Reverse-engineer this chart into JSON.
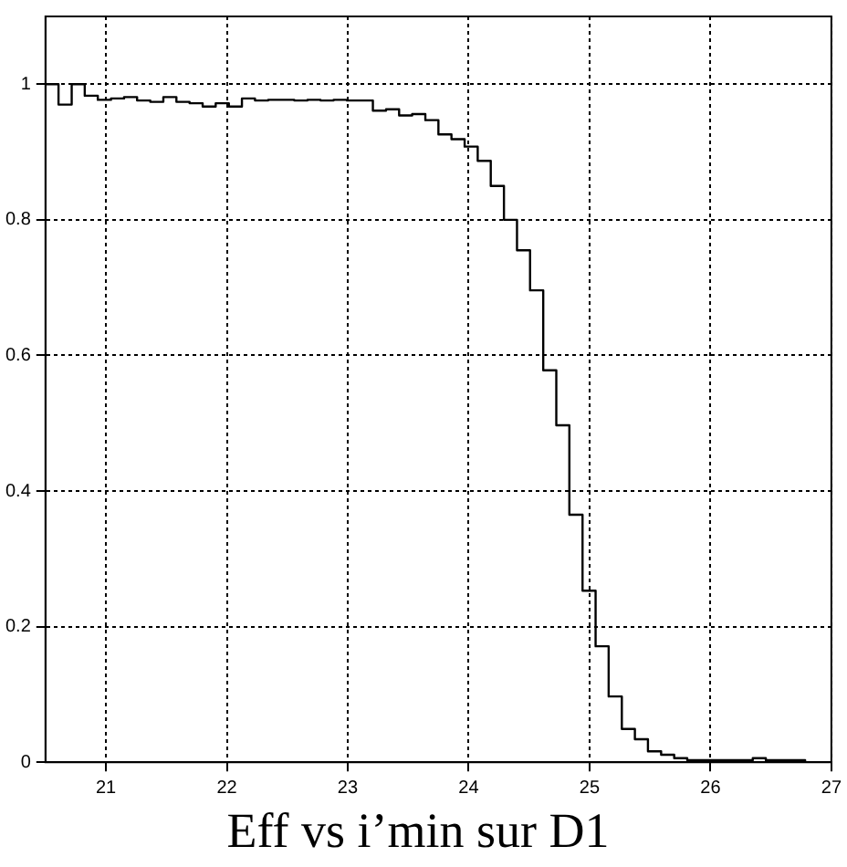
{
  "chart_data": {
    "type": "histogram",
    "title": "Eff vs i’min sur D1",
    "bins": [
      20.5,
      20.608,
      20.717,
      20.825,
      20.933,
      21.042,
      21.15,
      21.258,
      21.367,
      21.475,
      21.583,
      21.692,
      21.8,
      21.908,
      22.017,
      22.125,
      22.233,
      22.342,
      22.45,
      22.558,
      22.667,
      22.775,
      22.883,
      22.992,
      23.1,
      23.208,
      23.317,
      23.425,
      23.533,
      23.642,
      23.75,
      23.858,
      23.967,
      24.075,
      24.183,
      24.292,
      24.4,
      24.508,
      24.617,
      24.725,
      24.833,
      24.942,
      25.05,
      25.158,
      25.267,
      25.375,
      25.483,
      25.592,
      25.7,
      25.808,
      25.917,
      26.025,
      26.133,
      26.242,
      26.35,
      26.458,
      26.567,
      26.675,
      26.783,
      26.892,
      27
    ],
    "values": [
      1,
      0.97,
      1,
      0.983,
      0.977,
      0.979,
      0.981,
      0.976,
      0.974,
      0.981,
      0.974,
      0.972,
      0.967,
      0.972,
      0.967,
      0.979,
      0.976,
      0.977,
      0.977,
      0.976,
      0.977,
      0.976,
      0.977,
      0.976,
      0.976,
      0.961,
      0.963,
      0.954,
      0.956,
      0.947,
      0.926,
      0.919,
      0.908,
      0.887,
      0.85,
      0.8,
      0.755,
      0.696,
      0.578,
      0.497,
      0.365,
      0.253,
      0.171,
      0.097,
      0.049,
      0.034,
      0.016,
      0.011,
      0.006,
      0.003,
      0.003,
      0.003,
      0.003,
      0.003,
      0.006,
      0.003,
      0.003,
      0.003,
      0,
      0
    ],
    "color": "#000000",
    "xlim": [
      20.5,
      27
    ],
    "xticks": [
      21,
      22,
      23,
      24,
      25,
      26,
      27
    ],
    "ylim": [
      0,
      1.1
    ],
    "yticks": [
      0,
      0.2,
      0.4,
      0.6,
      0.8,
      1
    ],
    "grid": true,
    "line_style": "solid",
    "legend": false
  }
}
